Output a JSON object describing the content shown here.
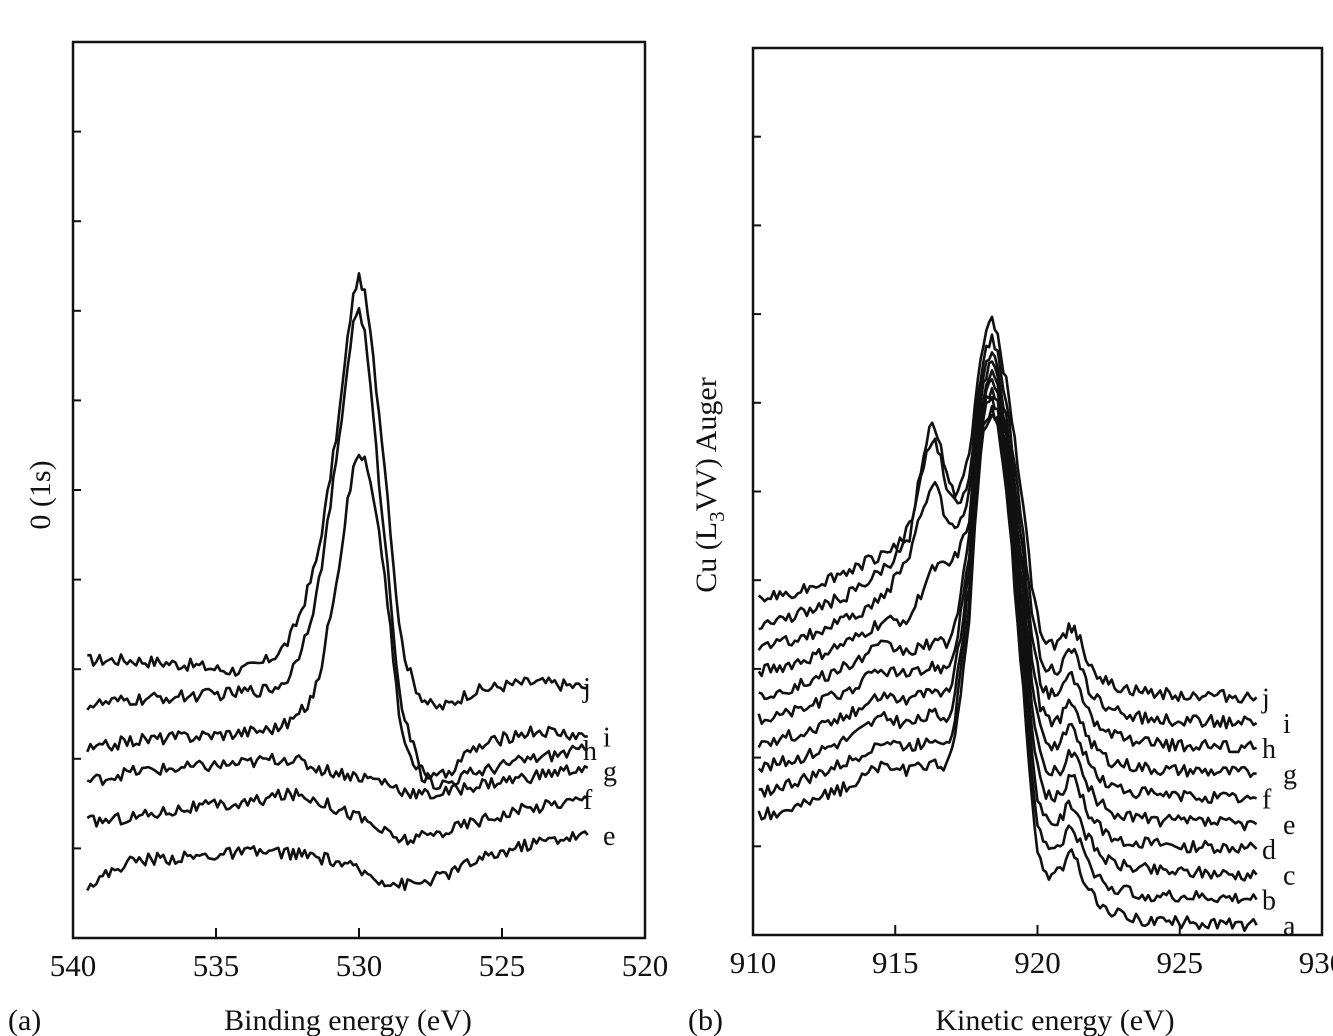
{
  "chart_data": [
    {
      "type": "line",
      "panel_label": "(a)",
      "xlabel": "Binding energy (eV)",
      "ylabel": "0 (1s)",
      "xlim": [
        540,
        520
      ],
      "ylim": [
        0,
        10
      ],
      "y_units": "arbitrary (unlabeled)",
      "xticks": [
        "540",
        "535",
        "530",
        "525",
        "520"
      ],
      "grid": false,
      "x": [
        539.5,
        538,
        536,
        534,
        532.5,
        531.5,
        530.8,
        530,
        529.2,
        528.5,
        527.5,
        526,
        524,
        522
      ],
      "series": [
        {
          "name": "j",
          "values": [
            3.1,
            3.1,
            3.05,
            3.0,
            3.3,
            4.2,
            5.6,
            7.35,
            5.6,
            3.3,
            2.6,
            2.75,
            2.85,
            2.8
          ]
        },
        {
          "name": "i",
          "values": [
            2.6,
            2.65,
            2.7,
            2.75,
            2.9,
            3.8,
            5.3,
            7.0,
            4.8,
            2.6,
            1.8,
            2.1,
            2.3,
            2.25
          ]
        },
        {
          "name": "h",
          "values": [
            2.1,
            2.2,
            2.25,
            2.3,
            2.4,
            2.8,
            4.0,
            5.4,
            4.3,
            2.3,
            1.75,
            1.85,
            2.0,
            2.1
          ]
        },
        {
          "name": "g",
          "values": [
            1.75,
            1.85,
            1.9,
            1.95,
            2.0,
            1.9,
            1.85,
            1.8,
            1.75,
            1.65,
            1.6,
            1.7,
            1.8,
            1.9
          ]
        },
        {
          "name": "f",
          "values": [
            1.3,
            1.35,
            1.45,
            1.5,
            1.6,
            1.55,
            1.45,
            1.35,
            1.2,
            1.1,
            1.15,
            1.3,
            1.45,
            1.55
          ]
        },
        {
          "name": "e",
          "values": [
            0.6,
            0.85,
            0.9,
            0.95,
            0.95,
            0.9,
            0.85,
            0.75,
            0.65,
            0.6,
            0.65,
            0.85,
            1.05,
            1.15
          ]
        }
      ]
    },
    {
      "type": "line",
      "panel_label": "(b)",
      "xlabel": "Kinetic energy (eV)",
      "ylabel_parts": [
        "Cu (L",
        "3",
        "VV) Auger"
      ],
      "xlim": [
        910,
        930
      ],
      "ylim": [
        0,
        10
      ],
      "y_units": "arbitrary (unlabeled)",
      "xticks": [
        "910",
        "915",
        "920",
        "925",
        "930"
      ],
      "grid": false,
      "x": [
        910.2,
        912,
        913.5,
        914.5,
        915.5,
        916.3,
        917,
        917.6,
        918.0,
        918.4,
        918.8,
        919.3,
        920,
        920.7,
        921.2,
        921.8,
        922.5,
        924,
        926,
        927.7
      ],
      "series": [
        {
          "name": "j",
          "values": [
            3.78,
            3.93,
            4.13,
            4.3,
            4.6,
            5.75,
            5.0,
            5.4,
            6.5,
            6.9,
            6.4,
            5.3,
            3.58,
            3.28,
            3.48,
            3.08,
            2.83,
            2.73,
            2.7,
            2.68
          ]
        },
        {
          "name": "i",
          "values": [
            3.51,
            3.66,
            3.86,
            4.1,
            4.5,
            5.6,
            4.9,
            5.2,
            6.3,
            6.7,
            6.2,
            5.0,
            3.29,
            2.99,
            3.19,
            2.79,
            2.54,
            2.44,
            2.41,
            2.39
          ]
        },
        {
          "name": "h",
          "values": [
            3.24,
            3.39,
            3.59,
            3.8,
            4.3,
            5.05,
            4.6,
            5.0,
            6.1,
            6.5,
            6.0,
            4.8,
            3.01,
            2.71,
            2.91,
            2.51,
            2.26,
            2.16,
            2.13,
            2.11
          ]
        },
        {
          "name": "g",
          "values": [
            2.97,
            3.12,
            3.32,
            3.52,
            3.6,
            4.1,
            4.2,
            4.7,
            6.0,
            6.4,
            5.9,
            4.61,
            2.72,
            2.42,
            2.62,
            2.22,
            1.97,
            1.87,
            1.84,
            1.82
          ]
        },
        {
          "name": "f",
          "values": [
            2.7,
            2.85,
            3.05,
            3.25,
            3.2,
            3.3,
            3.4,
            4.5,
            5.9,
            6.3,
            5.8,
            4.42,
            2.44,
            2.14,
            2.34,
            1.94,
            1.69,
            1.59,
            1.56,
            1.54
          ]
        },
        {
          "name": "e",
          "values": [
            2.43,
            2.58,
            2.78,
            2.98,
            2.93,
            3.03,
            3.13,
            4.3,
            5.8,
            6.2,
            5.7,
            4.23,
            2.15,
            1.85,
            2.05,
            1.65,
            1.4,
            1.3,
            1.27,
            1.25
          ]
        },
        {
          "name": "d",
          "values": [
            2.16,
            2.31,
            2.51,
            2.71,
            2.66,
            2.76,
            2.86,
            4.1,
            5.7,
            6.1,
            5.6,
            4.04,
            1.87,
            1.57,
            1.77,
            1.37,
            1.12,
            1.02,
            0.99,
            0.97
          ]
        },
        {
          "name": "c",
          "values": [
            1.89,
            2.04,
            2.24,
            2.44,
            2.39,
            2.49,
            2.59,
            3.95,
            5.6,
            6.0,
            5.5,
            3.84,
            1.58,
            1.28,
            1.48,
            1.08,
            0.83,
            0.73,
            0.7,
            0.68
          ]
        },
        {
          "name": "b",
          "values": [
            1.62,
            1.77,
            1.97,
            2.17,
            2.12,
            2.22,
            2.32,
            3.75,
            5.5,
            5.9,
            5.4,
            3.65,
            1.3,
            1.0,
            1.2,
            0.8,
            0.55,
            0.45,
            0.42,
            0.4
          ]
        },
        {
          "name": "a",
          "values": [
            1.35,
            1.5,
            1.7,
            1.9,
            1.85,
            1.95,
            2.05,
            3.6,
            5.4,
            5.8,
            5.3,
            3.5,
            1.0,
            0.7,
            0.9,
            0.5,
            0.26,
            0.16,
            0.13,
            0.11
          ]
        }
      ]
    }
  ]
}
